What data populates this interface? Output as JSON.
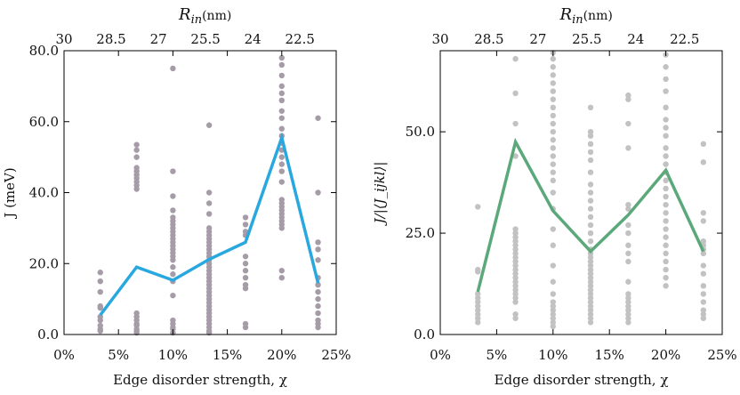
{
  "chart_data": [
    {
      "type": "scatter",
      "xlabel": "Edge disorder strength, χ",
      "ylabel": "J (meV)",
      "top_axis_label_main": "R",
      "top_axis_label_sub": "in",
      "top_axis_label_unit": "(nm)",
      "xlim": [
        0,
        25
      ],
      "ylim": [
        0,
        80
      ],
      "x_ticks": [
        {
          "value": 0,
          "label": "0%"
        },
        {
          "value": 5,
          "label": "5%"
        },
        {
          "value": 10,
          "label": "10%"
        },
        {
          "value": 15,
          "label": "15%"
        },
        {
          "value": 20,
          "label": "20%"
        },
        {
          "value": 25,
          "label": "25%"
        }
      ],
      "y_ticks": [
        {
          "value": 0,
          "label": "0.0"
        },
        {
          "value": 20,
          "label": "20.0"
        },
        {
          "value": 40,
          "label": "40.0"
        },
        {
          "value": 60,
          "label": "60.0"
        },
        {
          "value": 80,
          "label": "80.0"
        }
      ],
      "top_ticks": [
        {
          "value": 0,
          "label": "30"
        },
        {
          "value": 4.33,
          "label": "28.5"
        },
        {
          "value": 8.67,
          "label": "27"
        },
        {
          "value": 13.0,
          "label": "25.5"
        },
        {
          "value": 17.33,
          "label": "24"
        },
        {
          "value": 21.67,
          "label": "22.5"
        }
      ],
      "scatter_color": "#a69ca8",
      "line_color": "#29a8e0",
      "scatter_groups": [
        {
          "x": 3.33,
          "y": [
            17.5,
            15,
            12,
            8,
            7.5,
            5,
            4,
            2.5,
            1.5,
            1
          ]
        },
        {
          "x": 6.67,
          "y": [
            53.5,
            52,
            50,
            47,
            46,
            45,
            44,
            43,
            42,
            41,
            6,
            5,
            4,
            3,
            2.5,
            1.5,
            1,
            0.5
          ]
        },
        {
          "x": 10.0,
          "y": [
            75,
            46,
            39,
            35,
            33,
            32,
            31,
            30,
            29,
            28,
            27,
            26,
            25,
            24,
            23,
            22,
            21,
            19,
            17,
            15,
            11,
            4,
            3,
            2,
            1.5,
            0.5
          ]
        },
        {
          "x": 13.33,
          "y": [
            59,
            40,
            37,
            34,
            30,
            29,
            28,
            27,
            26,
            25,
            24,
            23,
            22,
            21,
            20,
            19,
            18,
            17,
            16,
            15,
            14,
            13,
            12,
            11,
            10,
            9,
            8,
            7,
            6,
            5,
            4,
            3,
            2,
            1,
            0.5
          ]
        },
        {
          "x": 16.67,
          "y": [
            33,
            31,
            29,
            28,
            22,
            20,
            18,
            16,
            14,
            13,
            3,
            2
          ]
        },
        {
          "x": 20.0,
          "y": [
            78,
            76,
            73,
            70,
            68,
            66,
            63,
            61,
            58,
            56,
            54,
            52,
            50,
            48,
            46,
            43,
            38,
            37,
            36,
            35,
            34,
            33,
            32,
            31,
            30,
            18,
            16
          ]
        },
        {
          "x": 23.33,
          "y": [
            61,
            40,
            26,
            24,
            21,
            16,
            14,
            12,
            10,
            8,
            6,
            4,
            3,
            2
          ]
        }
      ],
      "series": [
        {
          "x": [
            3.33,
            6.67,
            10.0,
            13.33,
            16.67,
            20.0,
            23.33
          ],
          "values": [
            5.5,
            19,
            15.3,
            21.2,
            26,
            55.5,
            14.5
          ]
        }
      ]
    },
    {
      "type": "scatter",
      "xlabel": "Edge disorder strength, χ",
      "ylabel": "J/|⟨J_ijkl⟩|",
      "top_axis_label_main": "R",
      "top_axis_label_sub": "in",
      "top_axis_label_unit": "(nm)",
      "xlim": [
        0,
        25
      ],
      "ylim": [
        0,
        70
      ],
      "x_ticks": [
        {
          "value": 0,
          "label": "0%"
        },
        {
          "value": 5,
          "label": "5%"
        },
        {
          "value": 10,
          "label": "10%"
        },
        {
          "value": 15,
          "label": "15%"
        },
        {
          "value": 20,
          "label": "20%"
        },
        {
          "value": 25,
          "label": "25%"
        }
      ],
      "y_ticks": [
        {
          "value": 0,
          "label": "0.0"
        },
        {
          "value": 25,
          "label": "25.0"
        },
        {
          "value": 50,
          "label": "50.0"
        }
      ],
      "top_ticks": [
        {
          "value": 0,
          "label": "30"
        },
        {
          "value": 4.33,
          "label": "28.5"
        },
        {
          "value": 8.67,
          "label": "27"
        },
        {
          "value": 13.0,
          "label": "25.5"
        },
        {
          "value": 17.33,
          "label": "24"
        },
        {
          "value": 21.67,
          "label": "22.5"
        }
      ],
      "scatter_color": "#c2c2c2",
      "line_color": "#5ba87a",
      "scatter_groups": [
        {
          "x": 3.33,
          "y": [
            31.5,
            16,
            15.5,
            10,
            9,
            8,
            7,
            6,
            5,
            4,
            3
          ]
        },
        {
          "x": 6.67,
          "y": [
            68,
            59.5,
            52,
            44,
            26,
            25,
            24,
            23,
            22,
            21,
            20,
            19,
            18,
            17,
            16,
            15,
            14,
            13,
            12,
            11,
            10,
            9,
            8,
            5,
            4
          ]
        },
        {
          "x": 10.0,
          "y": [
            69.5,
            68,
            66,
            64,
            62,
            60,
            58,
            56,
            54,
            52,
            50,
            48,
            46,
            44,
            42,
            40,
            38,
            35,
            31,
            26,
            22,
            17,
            13,
            10,
            8,
            7,
            6,
            5,
            4,
            3,
            2
          ]
        },
        {
          "x": 13.33,
          "y": [
            56,
            50,
            49,
            47,
            45,
            43,
            40,
            37,
            35,
            33,
            31,
            29,
            27,
            25,
            23,
            21,
            20,
            19,
            18,
            17,
            16,
            15,
            14,
            13,
            12,
            11,
            10,
            9,
            8,
            7,
            6,
            5,
            4,
            3
          ]
        },
        {
          "x": 16.67,
          "y": [
            59,
            58,
            52,
            46,
            32,
            31,
            27,
            25,
            22,
            20,
            18,
            13,
            10,
            9,
            8,
            7,
            6,
            5,
            4,
            3
          ]
        },
        {
          "x": 20.0,
          "y": [
            69,
            66,
            63,
            60,
            56,
            53,
            51,
            49,
            46,
            44,
            42,
            40,
            38,
            36,
            34,
            32,
            30,
            28,
            26,
            24,
            22,
            20,
            18,
            16,
            14,
            12
          ]
        },
        {
          "x": 23.33,
          "y": [
            47,
            42.5,
            30,
            28,
            23,
            22,
            21,
            20,
            17,
            15,
            12,
            10,
            8,
            6,
            5,
            4
          ]
        }
      ],
      "series": [
        {
          "x": [
            3.33,
            6.67,
            10.0,
            13.33,
            16.67,
            20.0,
            23.33
          ],
          "values": [
            10.5,
            47.5,
            30.5,
            20.5,
            29.5,
            40.5,
            20.5
          ]
        }
      ]
    }
  ]
}
